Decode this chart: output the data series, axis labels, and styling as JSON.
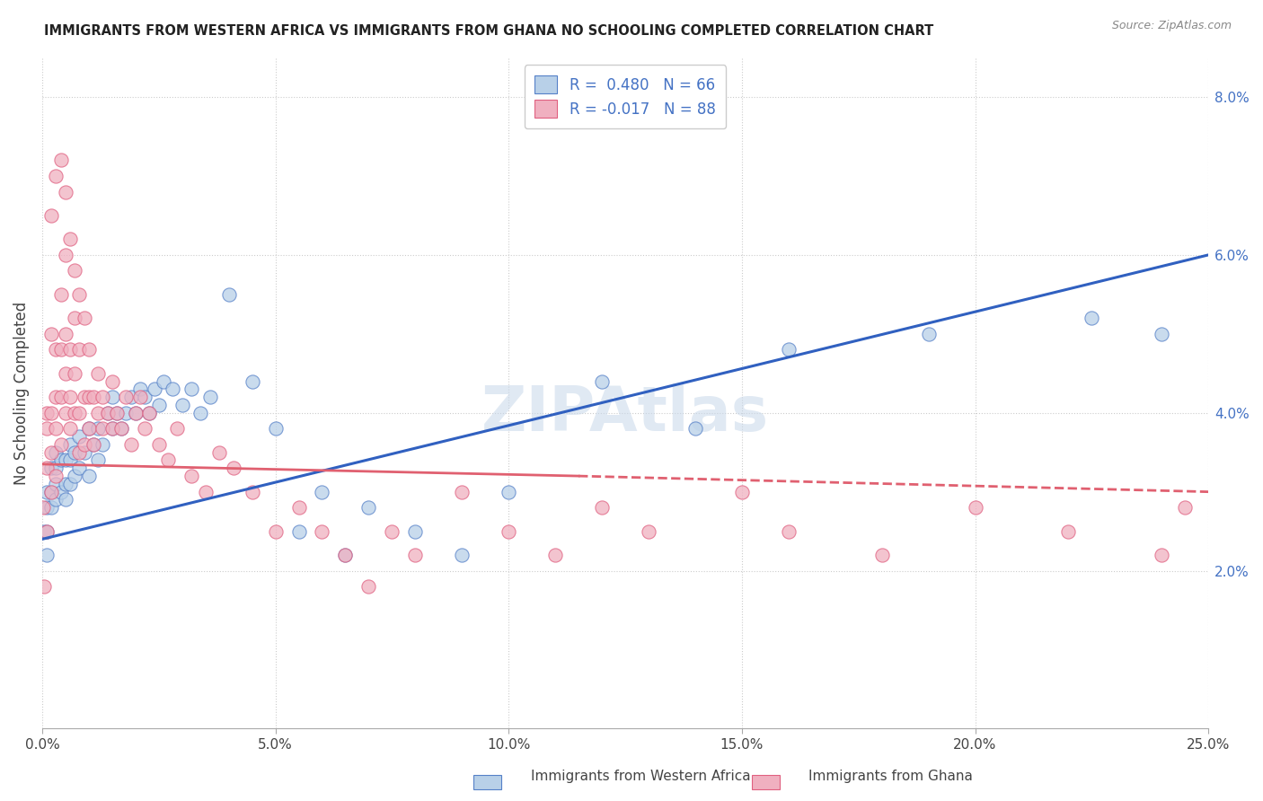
{
  "title": "IMMIGRANTS FROM WESTERN AFRICA VS IMMIGRANTS FROM GHANA NO SCHOOLING COMPLETED CORRELATION CHART",
  "source": "Source: ZipAtlas.com",
  "ylabel": "No Schooling Completed",
  "blue_r": "0.480",
  "blue_n": "66",
  "pink_r": "-0.017",
  "pink_n": "88",
  "blue_color": "#b8d0e8",
  "pink_color": "#f0b0c0",
  "blue_edge_color": "#5580c8",
  "pink_edge_color": "#e06080",
  "blue_line_color": "#3060c0",
  "pink_line_color": "#e06070",
  "watermark": "ZIPAtlas",
  "legend_label_blue": "Immigrants from Western Africa",
  "legend_label_pink": "Immigrants from Ghana",
  "xlim": [
    0.0,
    0.25
  ],
  "ylim": [
    0.0,
    0.085
  ],
  "xtick_vals": [
    0.0,
    0.05,
    0.1,
    0.15,
    0.2,
    0.25
  ],
  "ytick_vals": [
    0.02,
    0.04,
    0.06,
    0.08
  ],
  "blue_scatter_x": [
    0.0005,
    0.001,
    0.001,
    0.001,
    0.001,
    0.002,
    0.002,
    0.002,
    0.003,
    0.003,
    0.003,
    0.003,
    0.004,
    0.004,
    0.005,
    0.005,
    0.005,
    0.006,
    0.006,
    0.006,
    0.007,
    0.007,
    0.008,
    0.008,
    0.009,
    0.01,
    0.01,
    0.011,
    0.012,
    0.012,
    0.013,
    0.014,
    0.015,
    0.015,
    0.016,
    0.017,
    0.018,
    0.019,
    0.02,
    0.021,
    0.022,
    0.023,
    0.024,
    0.025,
    0.026,
    0.028,
    0.03,
    0.032,
    0.034,
    0.036,
    0.04,
    0.045,
    0.05,
    0.055,
    0.06,
    0.065,
    0.07,
    0.08,
    0.09,
    0.1,
    0.12,
    0.14,
    0.16,
    0.19,
    0.225,
    0.24
  ],
  "blue_scatter_y": [
    0.025,
    0.022,
    0.025,
    0.028,
    0.03,
    0.028,
    0.03,
    0.033,
    0.029,
    0.031,
    0.033,
    0.035,
    0.03,
    0.034,
    0.029,
    0.031,
    0.034,
    0.031,
    0.034,
    0.036,
    0.032,
    0.035,
    0.033,
    0.037,
    0.035,
    0.032,
    0.038,
    0.036,
    0.034,
    0.038,
    0.036,
    0.04,
    0.038,
    0.042,
    0.04,
    0.038,
    0.04,
    0.042,
    0.04,
    0.043,
    0.042,
    0.04,
    0.043,
    0.041,
    0.044,
    0.043,
    0.041,
    0.043,
    0.04,
    0.042,
    0.055,
    0.044,
    0.038,
    0.025,
    0.03,
    0.022,
    0.028,
    0.025,
    0.022,
    0.03,
    0.044,
    0.038,
    0.048,
    0.05,
    0.052,
    0.05
  ],
  "pink_scatter_x": [
    0.0003,
    0.0005,
    0.001,
    0.001,
    0.001,
    0.001,
    0.002,
    0.002,
    0.002,
    0.002,
    0.003,
    0.003,
    0.003,
    0.003,
    0.004,
    0.004,
    0.004,
    0.004,
    0.005,
    0.005,
    0.005,
    0.005,
    0.006,
    0.006,
    0.006,
    0.007,
    0.007,
    0.007,
    0.008,
    0.008,
    0.008,
    0.009,
    0.009,
    0.01,
    0.01,
    0.01,
    0.011,
    0.011,
    0.012,
    0.012,
    0.013,
    0.013,
    0.014,
    0.015,
    0.015,
    0.016,
    0.017,
    0.018,
    0.019,
    0.02,
    0.021,
    0.022,
    0.023,
    0.025,
    0.027,
    0.029,
    0.032,
    0.035,
    0.038,
    0.041,
    0.045,
    0.05,
    0.055,
    0.06,
    0.065,
    0.07,
    0.075,
    0.08,
    0.09,
    0.1,
    0.11,
    0.12,
    0.13,
    0.15,
    0.16,
    0.18,
    0.2,
    0.22,
    0.24,
    0.245,
    0.002,
    0.003,
    0.004,
    0.005,
    0.006,
    0.007,
    0.008,
    0.009
  ],
  "pink_scatter_y": [
    0.028,
    0.018,
    0.025,
    0.033,
    0.038,
    0.04,
    0.03,
    0.035,
    0.04,
    0.05,
    0.032,
    0.038,
    0.042,
    0.048,
    0.036,
    0.042,
    0.048,
    0.055,
    0.04,
    0.045,
    0.05,
    0.06,
    0.038,
    0.042,
    0.048,
    0.04,
    0.045,
    0.052,
    0.035,
    0.04,
    0.048,
    0.036,
    0.042,
    0.038,
    0.042,
    0.048,
    0.036,
    0.042,
    0.04,
    0.045,
    0.038,
    0.042,
    0.04,
    0.038,
    0.044,
    0.04,
    0.038,
    0.042,
    0.036,
    0.04,
    0.042,
    0.038,
    0.04,
    0.036,
    0.034,
    0.038,
    0.032,
    0.03,
    0.035,
    0.033,
    0.03,
    0.025,
    0.028,
    0.025,
    0.022,
    0.018,
    0.025,
    0.022,
    0.03,
    0.025,
    0.022,
    0.028,
    0.025,
    0.03,
    0.025,
    0.022,
    0.028,
    0.025,
    0.022,
    0.028,
    0.065,
    0.07,
    0.072,
    0.068,
    0.062,
    0.058,
    0.055,
    0.052
  ]
}
